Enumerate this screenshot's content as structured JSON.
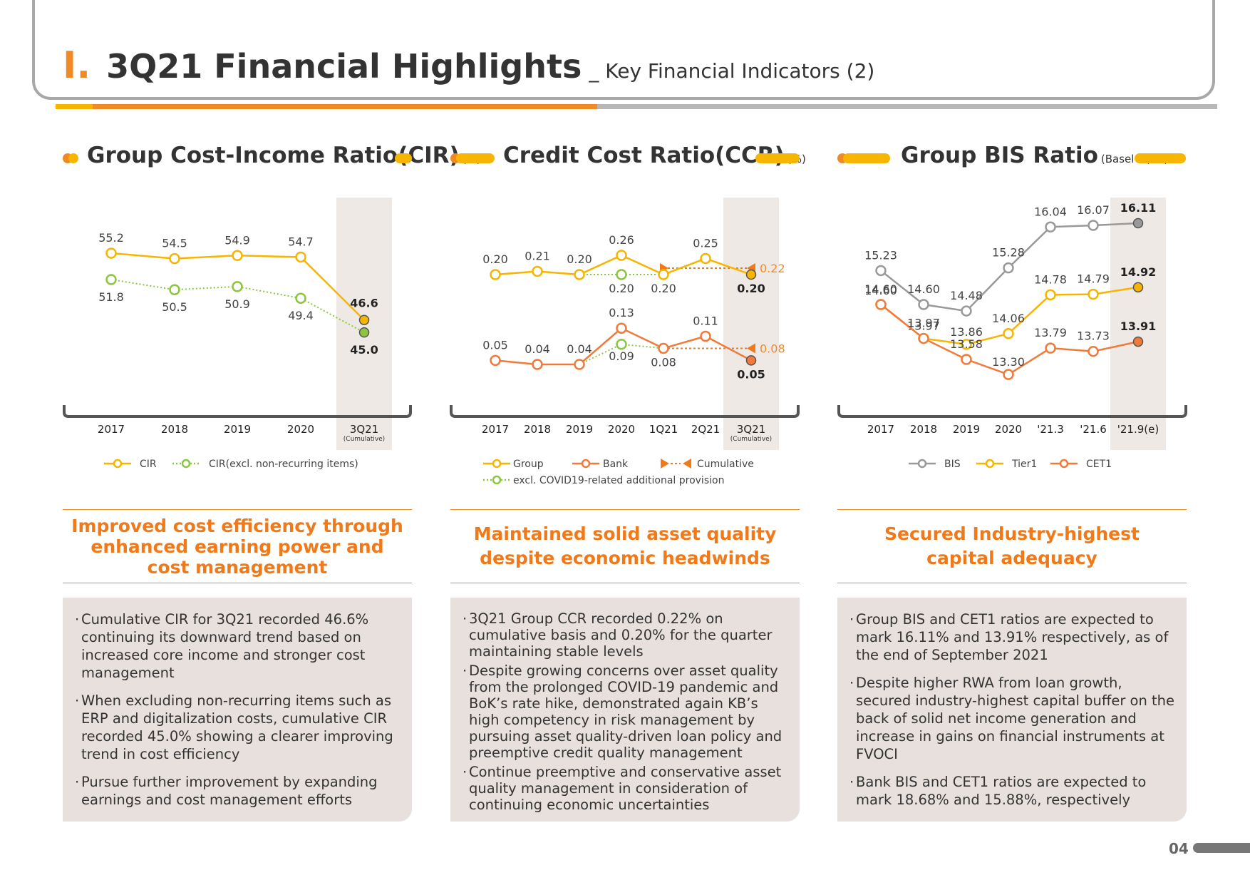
{
  "header": {
    "roman": "I.",
    "title": "3Q21 Financial Highlights",
    "subtitle": "_ Key Financial Indicators (2)"
  },
  "sections": [
    {
      "title": "Group Cost-Income Ratio(CIR)",
      "unit": "(%)"
    },
    {
      "title": "Credit Cost Ratio(CCR)",
      "unit": "(%)"
    },
    {
      "title": "Group BIS Ratio",
      "unit": "(Basel III, %)"
    }
  ],
  "chart_data": [
    {
      "type": "line",
      "categories": [
        "2017",
        "2018",
        "2019",
        "2020",
        "3Q21"
      ],
      "category_note": "(Cumulative)",
      "series": [
        {
          "name": "CIR",
          "values": [
            55.2,
            54.5,
            54.9,
            54.7,
            46.6
          ],
          "labels": [
            "55.2",
            "54.5",
            "54.9",
            "54.7",
            "46.6"
          ],
          "color": "#f7b500",
          "style": "solid"
        },
        {
          "name": "CIR(excl. non-recurring items)",
          "values": [
            51.8,
            50.5,
            50.9,
            49.4,
            45.0
          ],
          "labels": [
            "51.8",
            "50.5",
            "50.9",
            "49.4",
            "45.0"
          ],
          "color": "#8cc63f",
          "style": "dotted"
        }
      ],
      "ylim": [
        44,
        57
      ],
      "legend": "bottom"
    },
    {
      "type": "line",
      "categories": [
        "2017",
        "2018",
        "2019",
        "2020",
        "1Q21",
        "2Q21",
        "3Q21"
      ],
      "category_note": "(Cumulative)",
      "series": [
        {
          "name": "Group",
          "values": [
            0.2,
            0.21,
            0.2,
            0.26,
            0.2,
            0.25,
            0.2
          ],
          "labels": [
            "0.20",
            "0.21",
            "0.20",
            "0.26",
            "0.20",
            "0.25",
            "0.20"
          ],
          "color": "#f7b500",
          "style": "solid"
        },
        {
          "name": "Bank",
          "values": [
            0.05,
            0.04,
            0.04,
            0.13,
            0.08,
            0.11,
            0.05
          ],
          "labels": [
            "0.05",
            "0.04",
            "0.04",
            "0.13",
            "0.08",
            "0.11",
            "0.05"
          ],
          "color": "#f07a3a",
          "style": "solid"
        },
        {
          "name": "Cumulative",
          "group_value": 0.22,
          "bank_value": 0.08,
          "group_label": "0.22",
          "bank_label": "0.08",
          "color": "#f07a1a",
          "style": "dotted"
        },
        {
          "name": "excl. COVID19-related additional provision",
          "group_value_2020": 0.2,
          "bank_value_2020": 0.09,
          "group_label": "0.20",
          "bank_label": "0.09",
          "color": "#8cc63f",
          "style": "dotted"
        }
      ],
      "legend": "bottom"
    },
    {
      "type": "line",
      "categories": [
        "2017",
        "2018",
        "2019",
        "2020",
        "'21.3",
        "'21.6",
        "'21.9(e)"
      ],
      "series": [
        {
          "name": "BIS",
          "values": [
            15.23,
            14.6,
            14.48,
            15.28,
            16.04,
            16.07,
            16.11
          ],
          "labels": [
            "15.23",
            "14.60",
            "14.48",
            "15.28",
            "16.04",
            "16.07",
            "16.11"
          ],
          "color": "#999999",
          "style": "solid"
        },
        {
          "name": "Tier1",
          "values": [
            14.6,
            13.97,
            13.86,
            14.06,
            14.78,
            14.79,
            14.92
          ],
          "labels": [
            "14.60",
            "13.97",
            "13.86",
            "14.06",
            "14.78",
            "14.79",
            "14.92"
          ],
          "color": "#f7b500",
          "style": "solid"
        },
        {
          "name": "CET1",
          "values": [
            14.6,
            13.97,
            13.58,
            13.3,
            13.79,
            13.73,
            13.91
          ],
          "labels": [
            "14.60",
            "13.97",
            "13.58",
            "13.30",
            "13.79",
            "13.73",
            "13.91"
          ],
          "color": "#f07a3a",
          "style": "solid"
        }
      ],
      "legend": "bottom"
    }
  ],
  "headlines": [
    {
      "lines": [
        "Improved cost efficiency through",
        "enhanced earning power and",
        "cost management"
      ]
    },
    {
      "lines": [
        "Maintained solid asset quality",
        "despite economic headwinds"
      ]
    },
    {
      "lines": [
        "Secured Industry-highest",
        "capital adequacy"
      ]
    }
  ],
  "bullets": [
    [
      "Cumulative CIR for 3Q21 recorded 46.6% continuing its downward trend based on increased core income and stronger cost management",
      "When excluding non-recurring items such as ERP and digitalization costs, cumulative CIR recorded 45.0% showing a clearer improving trend in cost efficiency",
      "Pursue further improvement by expanding earnings and cost management efforts"
    ],
    [
      "3Q21 Group CCR recorded 0.22% on cumulative basis and 0.20% for the quarter maintaining stable levels",
      "Despite growing concerns over asset quality from the prolonged COVID-19 pandemic and BoK’s rate hike, demonstrated again KB’s high competency in risk management by pursuing asset quality-driven loan policy and preemptive credit quality management",
      "Continue preemptive and conservative asset quality management in consideration of continuing economic uncertainties"
    ],
    [
      "Group BIS and CET1 ratios are expected to mark 16.11% and 13.91% respectively, as of the end of September 2021",
      "Despite higher RWA from loan growth, secured industry-highest capital buffer on the back of solid net income generation and increase in gains on financial instruments at FVOCI",
      "Bank BIS and CET1 ratios are expected to mark 18.68% and 15.88%, respectively"
    ]
  ],
  "page_number": "04"
}
